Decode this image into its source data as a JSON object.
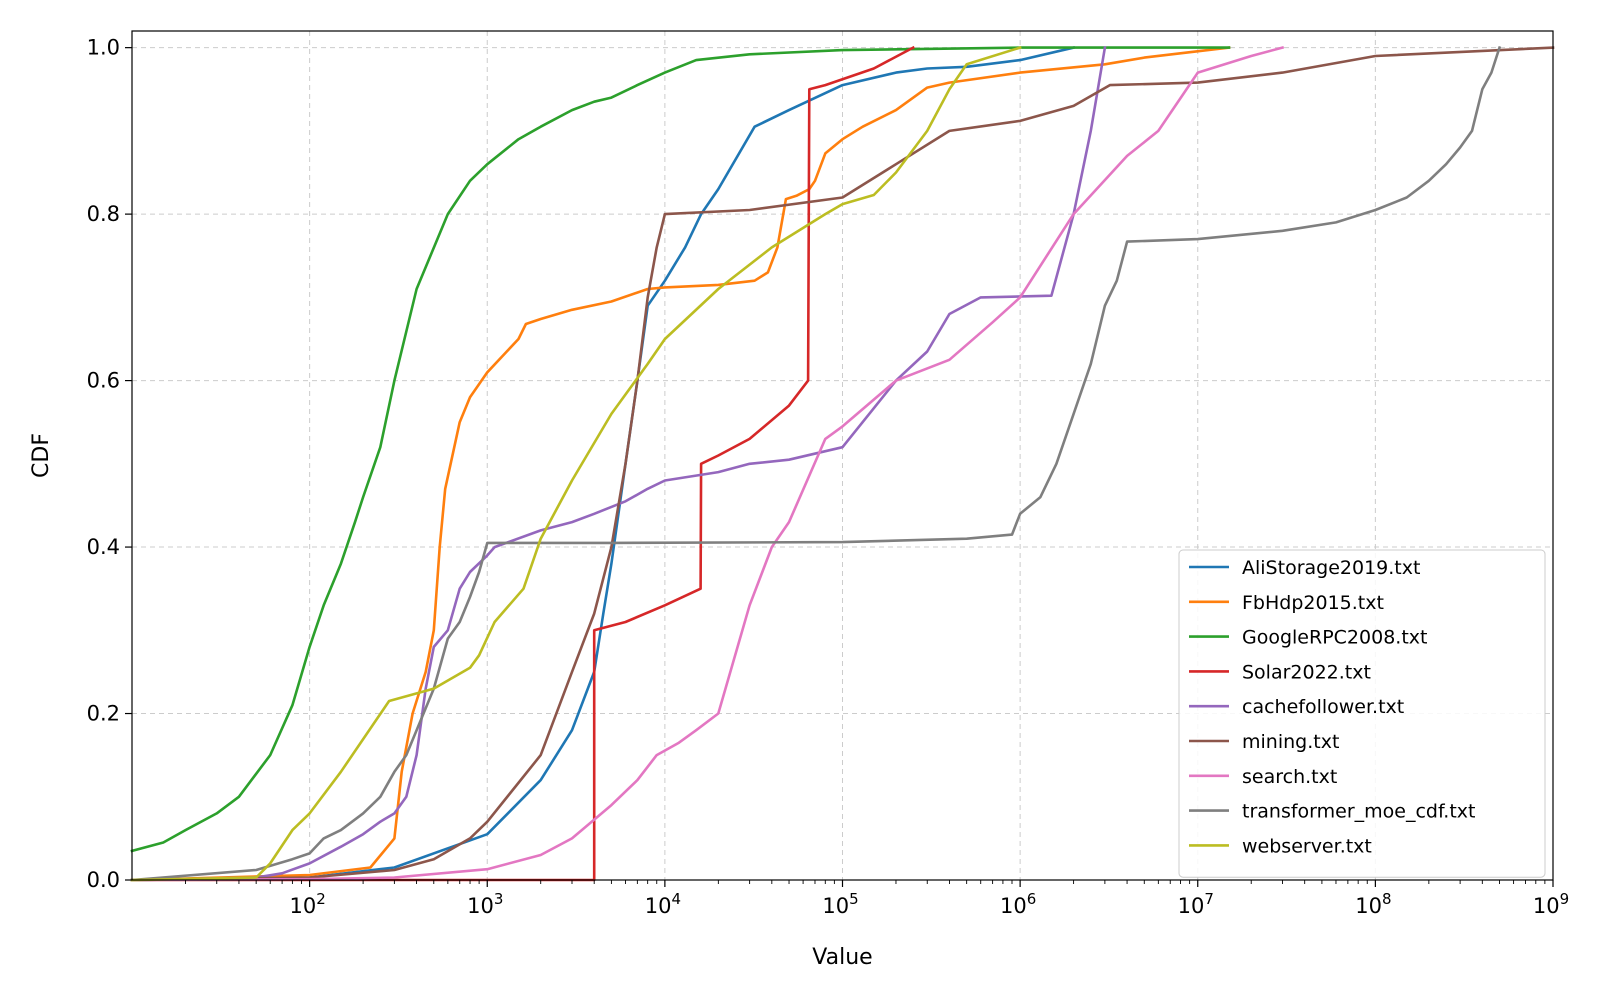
{
  "chart_data": {
    "type": "line",
    "title": "",
    "xlabel": "Value",
    "ylabel": "CDF",
    "xscale": "log",
    "xlim": [
      10,
      1000000000
    ],
    "ylim": [
      0.0,
      1.02
    ],
    "grid": true,
    "legend_position": "lower right",
    "x_ticks": [
      {
        "value": 100,
        "base": "10",
        "exp": "2"
      },
      {
        "value": 1000,
        "base": "10",
        "exp": "3"
      },
      {
        "value": 10000,
        "base": "10",
        "exp": "4"
      },
      {
        "value": 100000,
        "base": "10",
        "exp": "5"
      },
      {
        "value": 1000000,
        "base": "10",
        "exp": "6"
      },
      {
        "value": 10000000,
        "base": "10",
        "exp": "7"
      },
      {
        "value": 100000000,
        "base": "10",
        "exp": "8"
      },
      {
        "value": 1000000000,
        "base": "10",
        "exp": "9"
      }
    ],
    "y_ticks": [
      {
        "value": 0.0,
        "label": "0.0"
      },
      {
        "value": 0.2,
        "label": "0.2"
      },
      {
        "value": 0.4,
        "label": "0.4"
      },
      {
        "value": 0.6,
        "label": "0.6"
      },
      {
        "value": 0.8,
        "label": "0.8"
      },
      {
        "value": 1.0,
        "label": "1.0"
      }
    ],
    "series": [
      {
        "name": "AliStorage2019.txt",
        "color": "#1f77b4",
        "points": [
          [
            10,
            0
          ],
          [
            100,
            0.003
          ],
          [
            300,
            0.015
          ],
          [
            1000,
            0.055
          ],
          [
            2000,
            0.12
          ],
          [
            3000,
            0.18
          ],
          [
            4000,
            0.25
          ],
          [
            4500,
            0.32
          ],
          [
            5000,
            0.38
          ],
          [
            6000,
            0.5
          ],
          [
            7000,
            0.6
          ],
          [
            8000,
            0.69
          ],
          [
            10000,
            0.72
          ],
          [
            13000,
            0.76
          ],
          [
            16000,
            0.8
          ],
          [
            20000,
            0.83
          ],
          [
            32000,
            0.905
          ],
          [
            50000,
            0.925
          ],
          [
            100000,
            0.955
          ],
          [
            200000,
            0.97
          ],
          [
            300000,
            0.975
          ],
          [
            500000,
            0.977
          ],
          [
            1000000,
            0.985
          ],
          [
            2000000,
            1.0
          ]
        ]
      },
      {
        "name": "FbHdp2015.txt",
        "color": "#ff7f0e",
        "points": [
          [
            10,
            0
          ],
          [
            100,
            0.006
          ],
          [
            220,
            0.015
          ],
          [
            300,
            0.05
          ],
          [
            330,
            0.13
          ],
          [
            380,
            0.2
          ],
          [
            450,
            0.25
          ],
          [
            500,
            0.3
          ],
          [
            540,
            0.4
          ],
          [
            580,
            0.47
          ],
          [
            700,
            0.55
          ],
          [
            800,
            0.58
          ],
          [
            1000,
            0.61
          ],
          [
            1500,
            0.65
          ],
          [
            1650,
            0.668
          ],
          [
            2000,
            0.674
          ],
          [
            3000,
            0.685
          ],
          [
            5000,
            0.695
          ],
          [
            8000,
            0.71
          ],
          [
            10000,
            0.712
          ],
          [
            20000,
            0.715
          ],
          [
            32000,
            0.72
          ],
          [
            38000,
            0.73
          ],
          [
            43000,
            0.76
          ],
          [
            48000,
            0.818
          ],
          [
            55000,
            0.822
          ],
          [
            65000,
            0.83
          ],
          [
            70000,
            0.84
          ],
          [
            80000,
            0.873
          ],
          [
            100000,
            0.89
          ],
          [
            130000,
            0.905
          ],
          [
            200000,
            0.925
          ],
          [
            300000,
            0.952
          ],
          [
            400000,
            0.958
          ],
          [
            1000000,
            0.97
          ],
          [
            3000000,
            0.98
          ],
          [
            5000000,
            0.988
          ],
          [
            15000000,
            1.0
          ]
        ]
      },
      {
        "name": "GoogleRPC2008.txt",
        "color": "#2ca02c",
        "points": [
          [
            10,
            0.035
          ],
          [
            15,
            0.045
          ],
          [
            20,
            0.06
          ],
          [
            30,
            0.08
          ],
          [
            40,
            0.1
          ],
          [
            60,
            0.15
          ],
          [
            80,
            0.21
          ],
          [
            100,
            0.28
          ],
          [
            120,
            0.33
          ],
          [
            150,
            0.38
          ],
          [
            180,
            0.43
          ],
          [
            200,
            0.46
          ],
          [
            250,
            0.52
          ],
          [
            300,
            0.6
          ],
          [
            400,
            0.71
          ],
          [
            600,
            0.8
          ],
          [
            800,
            0.84
          ],
          [
            1000,
            0.86
          ],
          [
            1500,
            0.89
          ],
          [
            2000,
            0.905
          ],
          [
            3000,
            0.925
          ],
          [
            4000,
            0.935
          ],
          [
            5000,
            0.94
          ],
          [
            7000,
            0.955
          ],
          [
            10000,
            0.97
          ],
          [
            15000,
            0.985
          ],
          [
            30000,
            0.992
          ],
          [
            100000,
            0.997
          ],
          [
            1000000,
            1.0
          ],
          [
            15000000,
            1.0
          ]
        ]
      },
      {
        "name": "Solar2022.txt",
        "color": "#d62728",
        "points": [
          [
            10,
            0
          ],
          [
            3999,
            0
          ],
          [
            4000,
            0.3
          ],
          [
            6000,
            0.31
          ],
          [
            10000,
            0.33
          ],
          [
            15900,
            0.35
          ],
          [
            16000,
            0.5
          ],
          [
            20000,
            0.51
          ],
          [
            30000,
            0.53
          ],
          [
            50000,
            0.57
          ],
          [
            64000,
            0.6
          ],
          [
            65000,
            0.95
          ],
          [
            80000,
            0.955
          ],
          [
            150000,
            0.975
          ],
          [
            250000,
            1.0
          ]
        ]
      },
      {
        "name": "cachefollower.txt",
        "color": "#9467bd",
        "points": [
          [
            10,
            0
          ],
          [
            50,
            0.003
          ],
          [
            70,
            0.008
          ],
          [
            100,
            0.02
          ],
          [
            150,
            0.04
          ],
          [
            200,
            0.055
          ],
          [
            250,
            0.07
          ],
          [
            300,
            0.08
          ],
          [
            350,
            0.1
          ],
          [
            400,
            0.15
          ],
          [
            450,
            0.23
          ],
          [
            500,
            0.28
          ],
          [
            600,
            0.3
          ],
          [
            700,
            0.35
          ],
          [
            800,
            0.37
          ],
          [
            1000,
            0.39
          ],
          [
            1100,
            0.4
          ],
          [
            2000,
            0.42
          ],
          [
            3000,
            0.43
          ],
          [
            4000,
            0.44
          ],
          [
            6000,
            0.455
          ],
          [
            8000,
            0.47
          ],
          [
            10000,
            0.48
          ],
          [
            20000,
            0.49
          ],
          [
            30000,
            0.5
          ],
          [
            50000,
            0.505
          ],
          [
            100000,
            0.52
          ],
          [
            200000,
            0.6
          ],
          [
            300000,
            0.635
          ],
          [
            400000,
            0.68
          ],
          [
            600000,
            0.7
          ],
          [
            1500000,
            0.702
          ],
          [
            2000000,
            0.8
          ],
          [
            2500000,
            0.9
          ],
          [
            3000000,
            1.0
          ]
        ]
      },
      {
        "name": "mining.txt",
        "color": "#8c564b",
        "points": [
          [
            10,
            0
          ],
          [
            100,
            0.003
          ],
          [
            300,
            0.012
          ],
          [
            500,
            0.025
          ],
          [
            800,
            0.05
          ],
          [
            1000,
            0.07
          ],
          [
            2000,
            0.15
          ],
          [
            3000,
            0.25
          ],
          [
            4000,
            0.32
          ],
          [
            5000,
            0.4
          ],
          [
            6000,
            0.5
          ],
          [
            7000,
            0.6
          ],
          [
            8000,
            0.7
          ],
          [
            9000,
            0.76
          ],
          [
            10000,
            0.8
          ],
          [
            30000,
            0.805
          ],
          [
            100000,
            0.82
          ],
          [
            200000,
            0.86
          ],
          [
            400000,
            0.9
          ],
          [
            1000000,
            0.912
          ],
          [
            2000000,
            0.93
          ],
          [
            3200000,
            0.955
          ],
          [
            10000000,
            0.958
          ],
          [
            30000000,
            0.97
          ],
          [
            100000000,
            0.99
          ],
          [
            1000000000,
            1.0
          ]
        ]
      },
      {
        "name": "search.txt",
        "color": "#e377c2",
        "points": [
          [
            10,
            0
          ],
          [
            100,
            0.001
          ],
          [
            300,
            0.003
          ],
          [
            1000,
            0.013
          ],
          [
            2000,
            0.03
          ],
          [
            3000,
            0.05
          ],
          [
            5000,
            0.09
          ],
          [
            7000,
            0.12
          ],
          [
            9000,
            0.15
          ],
          [
            12000,
            0.165
          ],
          [
            15000,
            0.18
          ],
          [
            20000,
            0.2
          ],
          [
            30000,
            0.33
          ],
          [
            40000,
            0.4
          ],
          [
            50000,
            0.43
          ],
          [
            80000,
            0.53
          ],
          [
            100000,
            0.545
          ],
          [
            200000,
            0.6
          ],
          [
            400000,
            0.625
          ],
          [
            700000,
            0.67
          ],
          [
            1000000,
            0.7
          ],
          [
            2000000,
            0.8
          ],
          [
            4000000,
            0.87
          ],
          [
            6000000,
            0.9
          ],
          [
            10000000,
            0.97
          ],
          [
            20000000,
            0.99
          ],
          [
            30000000,
            1.0
          ]
        ]
      },
      {
        "name": "transformer_moe_cdf.txt",
        "color": "#7f7f7f",
        "points": [
          [
            10,
            0
          ],
          [
            50,
            0.012
          ],
          [
            80,
            0.025
          ],
          [
            100,
            0.032
          ],
          [
            120,
            0.05
          ],
          [
            150,
            0.06
          ],
          [
            200,
            0.08
          ],
          [
            250,
            0.1
          ],
          [
            300,
            0.13
          ],
          [
            350,
            0.15
          ],
          [
            400,
            0.18
          ],
          [
            500,
            0.23
          ],
          [
            600,
            0.29
          ],
          [
            700,
            0.31
          ],
          [
            800,
            0.34
          ],
          [
            900,
            0.37
          ],
          [
            1000,
            0.405
          ],
          [
            5000,
            0.405
          ],
          [
            100000,
            0.406
          ],
          [
            500000,
            0.41
          ],
          [
            900000,
            0.415
          ],
          [
            1000000,
            0.44
          ],
          [
            1300000,
            0.46
          ],
          [
            1600000,
            0.5
          ],
          [
            2000000,
            0.56
          ],
          [
            2500000,
            0.62
          ],
          [
            3000000,
            0.69
          ],
          [
            3500000,
            0.72
          ],
          [
            4000000,
            0.767
          ],
          [
            10000000,
            0.77
          ],
          [
            30000000,
            0.78
          ],
          [
            60000000,
            0.79
          ],
          [
            100000000,
            0.805
          ],
          [
            150000000,
            0.82
          ],
          [
            200000000,
            0.84
          ],
          [
            250000000,
            0.86
          ],
          [
            300000000,
            0.88
          ],
          [
            350000000,
            0.9
          ],
          [
            400000000,
            0.95
          ],
          [
            450000000,
            0.97
          ],
          [
            500000000,
            1.0
          ]
        ]
      },
      {
        "name": "webserver.txt",
        "color": "#bcbd22",
        "points": [
          [
            10,
            0
          ],
          [
            50,
            0.003
          ],
          [
            60,
            0.02
          ],
          [
            80,
            0.06
          ],
          [
            100,
            0.08
          ],
          [
            150,
            0.13
          ],
          [
            280,
            0.215
          ],
          [
            500,
            0.23
          ],
          [
            800,
            0.255
          ],
          [
            900,
            0.27
          ],
          [
            1100,
            0.31
          ],
          [
            1600,
            0.35
          ],
          [
            2000,
            0.41
          ],
          [
            3000,
            0.48
          ],
          [
            5000,
            0.56
          ],
          [
            8000,
            0.62
          ],
          [
            10000,
            0.65
          ],
          [
            20000,
            0.71
          ],
          [
            40000,
            0.76
          ],
          [
            80000,
            0.8
          ],
          [
            100000,
            0.812
          ],
          [
            150000,
            0.823
          ],
          [
            200000,
            0.85
          ],
          [
            300000,
            0.9
          ],
          [
            400000,
            0.95
          ],
          [
            500000,
            0.98
          ],
          [
            1000000,
            1.0
          ]
        ]
      }
    ]
  }
}
